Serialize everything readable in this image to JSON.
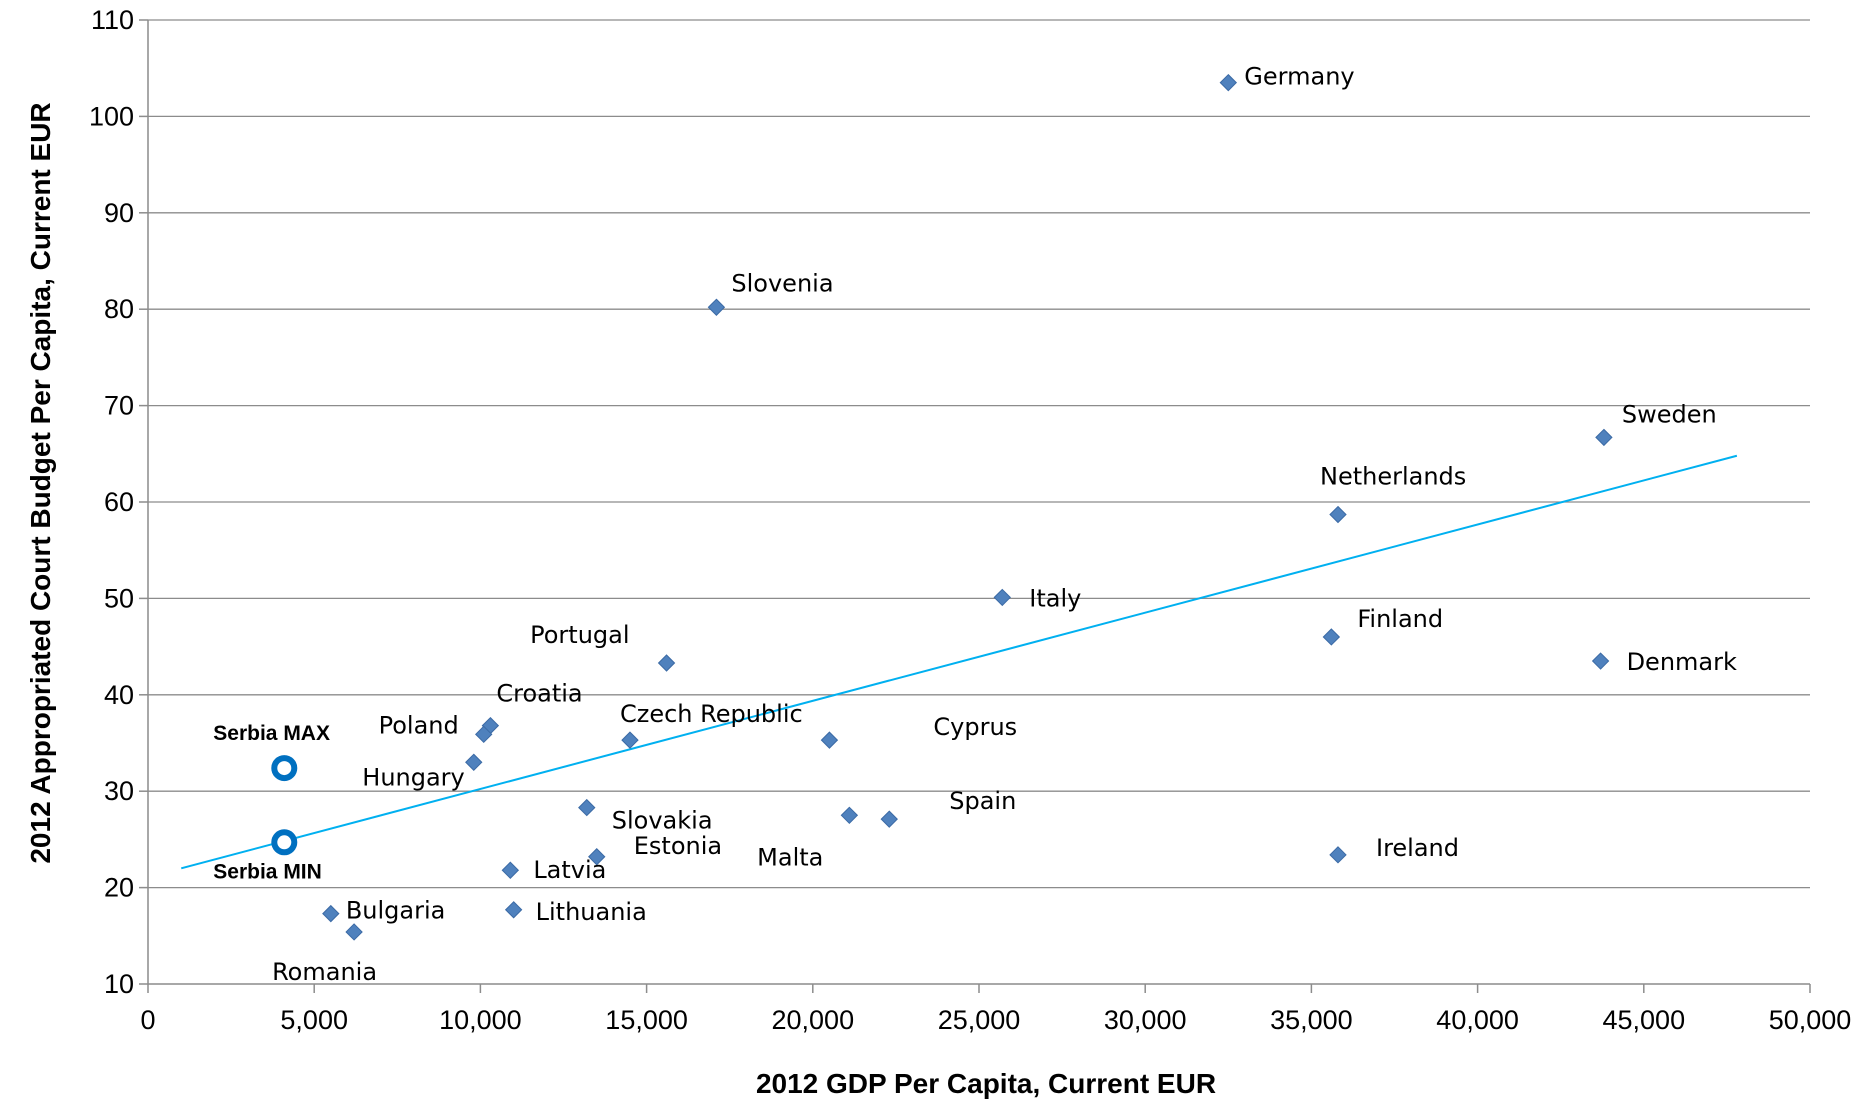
{
  "chart_data": {
    "type": "scatter",
    "xlabel": "2012 GDP Per Capita, Current EUR",
    "ylabel": "2012 Appropriated Court Budget Per Capita, Current EUR",
    "xlim": [
      0,
      50000
    ],
    "ylim": [
      10,
      110
    ],
    "x_ticks": [
      {
        "value": 0,
        "label": "0"
      },
      {
        "value": 5000,
        "label": "5,000"
      },
      {
        "value": 10000,
        "label": "10,000"
      },
      {
        "value": 15000,
        "label": "15,000"
      },
      {
        "value": 20000,
        "label": "20,000"
      },
      {
        "value": 25000,
        "label": "25,000"
      },
      {
        "value": 30000,
        "label": "30,000"
      },
      {
        "value": 35000,
        "label": "35,000"
      },
      {
        "value": 40000,
        "label": "40,000"
      },
      {
        "value": 45000,
        "label": "45,000"
      },
      {
        "value": 50000,
        "label": "50,000"
      }
    ],
    "y_ticks": [
      {
        "value": 10,
        "label": "10"
      },
      {
        "value": 20,
        "label": "20"
      },
      {
        "value": 30,
        "label": "30"
      },
      {
        "value": 40,
        "label": "40"
      },
      {
        "value": 50,
        "label": "50"
      },
      {
        "value": 60,
        "label": "60"
      },
      {
        "value": 70,
        "label": "70"
      },
      {
        "value": 80,
        "label": "80"
      },
      {
        "value": 90,
        "label": "90"
      },
      {
        "value": 100,
        "label": "100"
      },
      {
        "value": 110,
        "label": "110"
      }
    ],
    "grid": "horizontal",
    "legend": "none",
    "marker_color": "#4F81BD",
    "serbia_color": "#0070C0",
    "trend_color": "#00B0F0",
    "points": [
      {
        "label": "Germany",
        "x": 32500,
        "y": 103.5
      },
      {
        "label": "Slovenia",
        "x": 17100,
        "y": 80.2
      },
      {
        "label": "Sweden",
        "x": 43800,
        "y": 66.7
      },
      {
        "label": "Netherlands",
        "x": 35800,
        "y": 58.7
      },
      {
        "label": "Italy",
        "x": 25700,
        "y": 50.1
      },
      {
        "label": "Finland",
        "x": 35600,
        "y": 46.0
      },
      {
        "label": "Denmark",
        "x": 43700,
        "y": 43.5
      },
      {
        "label": "Portugal",
        "x": 15600,
        "y": 43.3
      },
      {
        "label": "Croatia",
        "x": 10300,
        "y": 36.8
      },
      {
        "label": "Poland",
        "x": 10100,
        "y": 35.9
      },
      {
        "label": "Czech Republic",
        "x": 14500,
        "y": 35.3
      },
      {
        "label": "Cyprus",
        "x": 20500,
        "y": 35.3
      },
      {
        "label": "Hungary",
        "x": 9800,
        "y": 33.0
      },
      {
        "label": "Slovakia",
        "x": 13200,
        "y": 28.3
      },
      {
        "label": "Malta",
        "x": 21100,
        "y": 27.5
      },
      {
        "label": "Spain",
        "x": 22300,
        "y": 27.1
      },
      {
        "label": "Ireland",
        "x": 35800,
        "y": 23.4
      },
      {
        "label": "Estonia",
        "x": 13500,
        "y": 23.2
      },
      {
        "label": "Latvia",
        "x": 10900,
        "y": 21.8
      },
      {
        "label": "Lithuania",
        "x": 11000,
        "y": 17.7
      },
      {
        "label": "Bulgaria",
        "x": 5500,
        "y": 17.3
      },
      {
        "label": "Romania",
        "x": 6200,
        "y": 15.4
      }
    ],
    "serbia": [
      {
        "label": "Serbia MAX",
        "x": 4100,
        "y": 32.4
      },
      {
        "label": "Serbia MIN",
        "x": 4100,
        "y": 24.7
      }
    ],
    "trendline": {
      "x": [
        1000,
        47800
      ],
      "y": [
        22.0,
        64.8
      ]
    }
  }
}
